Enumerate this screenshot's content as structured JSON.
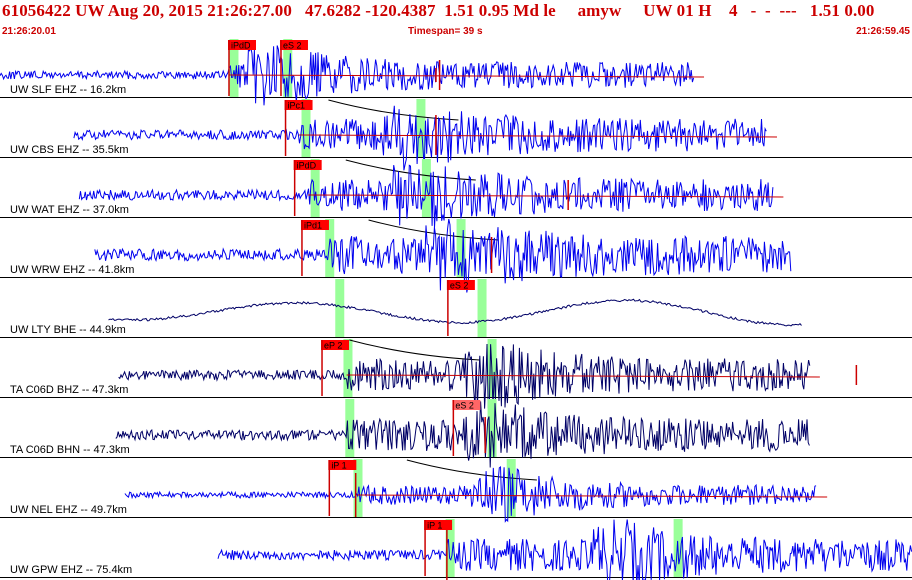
{
  "header": {
    "title": "61056422 UW Aug 20, 2015 21:26:27.00   47.6282 -120.4387  1.51 0.95 Md le     amyw     UW 01 H    4   -  -  ---   1.51 0.00",
    "start_time": "21:26:20.01",
    "timespan": "Timespan=  39 s",
    "end_time": "21:26:59.45"
  },
  "colors": {
    "background": "#ffffff",
    "title": "#cc0000",
    "trace_ehz": "#0000ee",
    "trace_broadband": "#000066",
    "pick_box": "#ff0000",
    "pick_box_light": "#ff6666",
    "pick_window": "#99ff99",
    "travel_curve": "#000000",
    "mark": "#cc0000"
  },
  "traces": [
    {
      "label": "UW SLF EHZ -- 16.2km",
      "color": "blue",
      "start": 0.0,
      "end": 0.761,
      "amp": 4,
      "pEnd": 0.251,
      "burst": 0.3,
      "picks": [
        {
          "text": "iPdD",
          "t": 0.25,
          "dark": true
        },
        {
          "text": "eS 2",
          "t": 0.307,
          "dark": true
        }
      ],
      "windows": [
        0.256,
        0.315
      ],
      "curveStart": null,
      "reds": [
        {
          "t": 0.482,
          "len": 30
        },
        {
          "t": 0.478,
          "len": 14
        }
      ],
      "redLine": true,
      "wave": null
    },
    {
      "label": "UW CBS EHZ -- 35.5km",
      "color": "blue",
      "start": 0.081,
      "end": 0.841,
      "amp": 5,
      "pEnd": 0.328,
      "burst": 0.45,
      "picks": [
        {
          "text": "iPc1",
          "t": 0.312,
          "dark": true
        }
      ],
      "windows": [
        0.335,
        0.461
      ],
      "curveStart": 0.404,
      "reds": [
        {
          "t": 0.478,
          "len": 40
        }
      ],
      "redLine": true,
      "wave": null
    },
    {
      "label": "UW WAT EHZ -- 37.0km",
      "color": "blue",
      "start": 0.087,
      "end": 0.848,
      "amp": 5,
      "pEnd": 0.338,
      "burst": 0.46,
      "picks": [
        {
          "text": "iPdD",
          "t": 0.322,
          "dark": true
        }
      ],
      "windows": [
        0.345,
        0.467
      ],
      "curveStart": 0.423,
      "reds": [
        {
          "t": 0.623,
          "len": 30
        }
      ],
      "redLine": true,
      "wave": null
    },
    {
      "label": "UW WRW EHZ -- 41.8km",
      "color": "blue",
      "start": 0.104,
      "end": 0.868,
      "amp": 6,
      "pEnd": 0.36,
      "burst": 0.5,
      "picks": [
        {
          "text": "iPd1",
          "t": 0.33,
          "dark": true
        }
      ],
      "windows": [
        0.361,
        0.505
      ],
      "curveStart": 0.448,
      "reds": [
        {
          "t": 0.539,
          "len": 36
        }
      ],
      "redLine": false,
      "wave": null
    },
    {
      "label": "UW LTY BHE -- 44.9km",
      "color": "dark",
      "start": 0.119,
      "end": 0.88,
      "amp": 2,
      "pEnd": 0.0,
      "burst": 0.52,
      "picks": [
        {
          "text": "eS 2",
          "t": 0.49,
          "dark": true
        }
      ],
      "windows": [
        0.372,
        0.528
      ],
      "curveStart": null,
      "reds": [],
      "redLine": false,
      "wave": true
    },
    {
      "label": "TA C06D BHZ -- 47.3km",
      "color": "dark",
      "start": 0.13,
      "end": 0.888,
      "amp": 5,
      "pEnd": 0.38,
      "burst": 0.54,
      "picks": [
        {
          "text": "eP 2",
          "t": 0.352,
          "dark": true
        }
      ],
      "windows": [
        0.381,
        0.539
      ],
      "curveStart": 0.427,
      "reds": [
        {
          "t": 0.939,
          "len": 20
        }
      ],
      "redLine": true,
      "wave": null
    },
    {
      "label": "TA C06D BHN -- 47.3km",
      "color": "dark",
      "start": 0.127,
      "end": 0.888,
      "amp": 5,
      "pEnd": 0.38,
      "burst": 0.54,
      "picks": [
        {
          "text": "eS 2",
          "t": 0.496,
          "dark": false
        }
      ],
      "windows": [
        0.383,
        0.539
      ],
      "curveStart": null,
      "reds": [
        {
          "t": 0.532,
          "len": 36
        }
      ],
      "redLine": false,
      "wave": null
    },
    {
      "label": "UW NEL EHZ -- 49.7km",
      "color": "blue",
      "start": 0.137,
      "end": 0.896,
      "amp": 3,
      "pEnd": 0.392,
      "burst": 0.55,
      "picks": [
        {
          "text": "iP 1",
          "t": 0.36,
          "dark": true
        }
      ],
      "windows": [
        0.392,
        0.56
      ],
      "curveStart": 0.49,
      "reds": [
        {
          "t": 0.39,
          "len": 44
        }
      ],
      "redLine": true,
      "wave": null
    },
    {
      "label": "UW GPW EHZ -- 75.4km",
      "color": "blue",
      "start": 0.239,
      "end": 1.0,
      "amp": 5,
      "pEnd": 0.49,
      "burst": 0.68,
      "picks": [
        {
          "text": "iP 1",
          "t": 0.465,
          "dark": true
        }
      ],
      "windows": [
        0.493,
        0.743
      ],
      "curveStart": null,
      "reds": [
        {
          "t": 0.49,
          "len": 50
        }
      ],
      "redLine": false,
      "wave": null
    }
  ]
}
